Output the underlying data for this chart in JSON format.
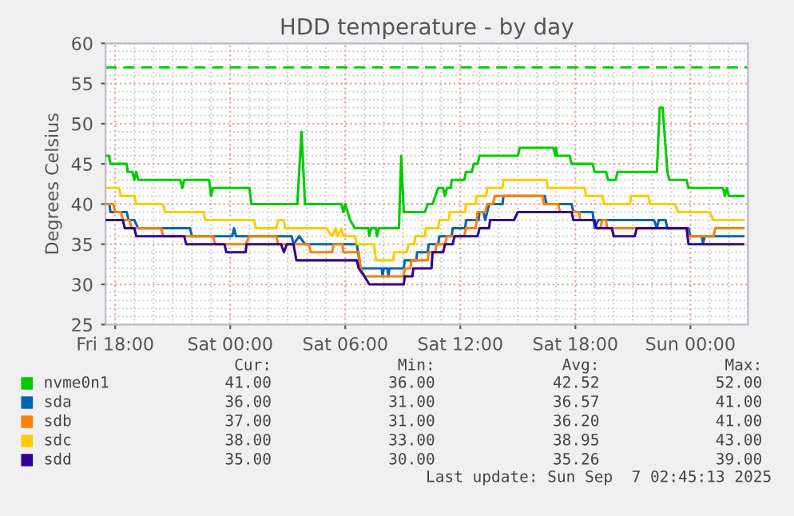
{
  "chart_data": {
    "type": "line",
    "title": "HDD temperature - by day",
    "ylabel": "Degrees Celsius",
    "xlim": [
      "2025-09-05T17:30",
      "2025-09-07T03:00"
    ],
    "ylim": [
      25,
      60
    ],
    "xticks": [
      {
        "value": "2025-09-05T18:00",
        "label": "Fri 18:00"
      },
      {
        "value": "2025-09-06T00:00",
        "label": "Sat 00:00"
      },
      {
        "value": "2025-09-06T06:00",
        "label": "Sat 06:00"
      },
      {
        "value": "2025-09-06T12:00",
        "label": "Sat 12:00"
      },
      {
        "value": "2025-09-06T18:00",
        "label": "Sat 18:00"
      },
      {
        "value": "2025-09-07T00:00",
        "label": "Sun 00:00"
      }
    ],
    "yticks": [
      25,
      30,
      35,
      40,
      45,
      50,
      55,
      60
    ],
    "grid": true,
    "legend": "bottom",
    "line_style": "solid",
    "marker": "none",
    "ref_lines": [
      {
        "axis": "y",
        "value": 57,
        "color": "#00cc00",
        "line_style": "dashed"
      }
    ],
    "series": [
      {
        "name": "nvme0n1",
        "color": "#00cc00",
        "x": [
          "2025-09-05T17:30",
          "2025-09-05T17:41",
          "2025-09-05T17:45",
          "2025-09-05T18:36",
          "2025-09-05T18:39",
          "2025-09-05T18:54",
          "2025-09-05T19:00",
          "2025-09-05T19:06",
          "2025-09-05T19:12",
          "2025-09-05T21:24",
          "2025-09-05T21:30",
          "2025-09-05T21:36",
          "2025-09-05T22:54",
          "2025-09-05T23:00",
          "2025-09-05T23:06",
          "2025-09-06T01:00",
          "2025-09-06T01:06",
          "2025-09-06T03:30",
          "2025-09-06T03:43",
          "2025-09-06T03:54",
          "2025-09-06T05:48",
          "2025-09-06T05:54",
          "2025-09-06T06:00",
          "2025-09-06T06:15",
          "2025-09-06T06:30",
          "2025-09-06T07:12",
          "2025-09-06T07:15",
          "2025-09-06T07:21",
          "2025-09-06T07:36",
          "2025-09-06T07:39",
          "2025-09-06T07:45",
          "2025-09-06T08:48",
          "2025-09-06T08:55",
          "2025-09-06T09:03",
          "2025-09-06T10:09",
          "2025-09-06T10:18",
          "2025-09-06T10:33",
          "2025-09-06T10:42",
          "2025-09-06T10:51",
          "2025-09-06T11:06",
          "2025-09-06T11:12",
          "2025-09-06T11:18",
          "2025-09-06T11:30",
          "2025-09-06T11:33",
          "2025-09-06T12:12",
          "2025-09-06T12:18",
          "2025-09-06T12:36",
          "2025-09-06T12:42",
          "2025-09-06T12:54",
          "2025-09-06T13:00",
          "2025-09-06T15:00",
          "2025-09-06T15:06",
          "2025-09-06T16:51",
          "2025-09-06T16:57",
          "2025-09-06T17:00",
          "2025-09-06T17:03",
          "2025-09-06T17:42",
          "2025-09-06T17:48",
          "2025-09-06T18:54",
          "2025-09-06T19:00",
          "2025-09-06T19:36",
          "2025-09-06T19:42",
          "2025-09-06T20:06",
          "2025-09-06T20:12",
          "2025-09-06T22:15",
          "2025-09-06T22:24",
          "2025-09-06T22:33",
          "2025-09-06T22:48",
          "2025-09-06T22:54",
          "2025-09-06T23:48",
          "2025-09-06T23:54",
          "2025-09-07T01:42",
          "2025-09-07T01:48",
          "2025-09-07T01:54",
          "2025-09-07T02:00",
          "2025-09-07T02:45"
        ],
        "values": [
          46,
          46,
          45,
          45,
          44,
          44,
          43,
          44,
          43,
          43,
          42,
          43,
          43,
          41,
          42,
          42,
          40,
          40,
          49,
          40,
          40,
          39,
          40,
          38,
          37,
          37,
          36,
          37,
          37,
          36,
          37,
          37,
          46,
          39,
          39,
          40,
          40,
          41,
          42,
          42,
          41,
          42,
          42,
          43,
          43,
          44,
          44,
          45,
          45,
          46,
          46,
          47,
          47,
          46,
          47,
          46,
          46,
          45,
          45,
          44,
          44,
          43,
          43,
          44,
          44,
          52,
          52,
          44,
          43,
          43,
          42,
          42,
          41,
          42,
          41,
          41
        ]
      },
      {
        "name": "sda",
        "color": "#0066b3",
        "x": [
          "2025-09-05T17:30",
          "2025-09-05T17:42",
          "2025-09-05T17:45",
          "2025-09-05T18:36",
          "2025-09-05T18:42",
          "2025-09-05T19:00",
          "2025-09-05T19:12",
          "2025-09-05T21:54",
          "2025-09-05T22:00",
          "2025-09-06T00:06",
          "2025-09-06T00:12",
          "2025-09-06T00:18",
          "2025-09-06T03:12",
          "2025-09-06T03:18",
          "2025-09-06T03:36",
          "2025-09-06T03:54",
          "2025-09-06T06:36",
          "2025-09-06T06:48",
          "2025-09-06T07:54",
          "2025-09-06T07:57",
          "2025-09-06T08:00",
          "2025-09-06T08:12",
          "2025-09-06T08:15",
          "2025-09-06T08:18",
          "2025-09-06T09:03",
          "2025-09-06T09:06",
          "2025-09-06T09:42",
          "2025-09-06T09:45",
          "2025-09-06T10:18",
          "2025-09-06T10:21",
          "2025-09-06T10:51",
          "2025-09-06T10:54",
          "2025-09-06T11:33",
          "2025-09-06T11:36",
          "2025-09-06T12:15",
          "2025-09-06T12:18",
          "2025-09-06T12:57",
          "2025-09-06T13:00",
          "2025-09-06T13:12",
          "2025-09-06T13:18",
          "2025-09-06T13:24",
          "2025-09-06T13:30",
          "2025-09-06T14:12",
          "2025-09-06T14:15",
          "2025-09-06T16:24",
          "2025-09-06T16:30",
          "2025-09-06T17:48",
          "2025-09-06T17:54",
          "2025-09-06T18:54",
          "2025-09-06T19:00",
          "2025-09-06T19:12",
          "2025-09-06T22:06",
          "2025-09-06T22:15",
          "2025-09-06T22:21",
          "2025-09-06T22:42",
          "2025-09-06T22:48",
          "2025-09-06T23:54",
          "2025-09-07T00:00",
          "2025-09-07T00:36",
          "2025-09-07T00:39",
          "2025-09-07T00:45",
          "2025-09-07T02:45"
        ],
        "values": [
          40,
          40,
          39,
          39,
          38,
          38,
          37,
          37,
          36,
          36,
          37,
          36,
          36,
          35,
          36,
          35,
          35,
          32,
          32,
          31,
          32,
          32,
          31,
          32,
          32,
          33,
          33,
          34,
          34,
          35,
          35,
          36,
          36,
          37,
          37,
          38,
          38,
          39,
          39,
          38,
          39,
          40,
          40,
          41,
          41,
          40,
          40,
          39,
          39,
          37,
          38,
          38,
          37,
          38,
          38,
          37,
          37,
          36,
          36,
          35,
          36,
          36
        ]
      },
      {
        "name": "sdb",
        "color": "#ff8000",
        "x": [
          "2025-09-05T17:30",
          "2025-09-05T17:54",
          "2025-09-05T18:00",
          "2025-09-05T18:18",
          "2025-09-05T18:24",
          "2025-09-05T18:45",
          "2025-09-05T18:51",
          "2025-09-05T20:24",
          "2025-09-05T20:30",
          "2025-09-05T23:06",
          "2025-09-05T23:12",
          "2025-09-06T00:48",
          "2025-09-06T01:00",
          "2025-09-06T02:24",
          "2025-09-06T02:30",
          "2025-09-06T04:06",
          "2025-09-06T04:12",
          "2025-09-06T05:18",
          "2025-09-06T05:24",
          "2025-09-06T05:51",
          "2025-09-06T05:54",
          "2025-09-06T06:42",
          "2025-09-06T06:48",
          "2025-09-06T07:00",
          "2025-09-06T09:03",
          "2025-09-06T09:06",
          "2025-09-06T09:24",
          "2025-09-06T09:27",
          "2025-09-06T10:18",
          "2025-09-06T10:21",
          "2025-09-06T10:42",
          "2025-09-06T10:45",
          "2025-09-06T11:12",
          "2025-09-06T11:18",
          "2025-09-06T12:12",
          "2025-09-06T12:18",
          "2025-09-06T12:48",
          "2025-09-06T12:54",
          "2025-09-06T13:18",
          "2025-09-06T13:24",
          "2025-09-06T13:42",
          "2025-09-06T13:48",
          "2025-09-06T16:18",
          "2025-09-06T16:21",
          "2025-09-06T17:06",
          "2025-09-06T17:12",
          "2025-09-06T18:12",
          "2025-09-06T18:15",
          "2025-09-06T19:00",
          "2025-09-06T19:06",
          "2025-09-06T19:18",
          "2025-09-06T19:24",
          "2025-09-06T19:36",
          "2025-09-06T19:39",
          "2025-09-06T23:48",
          "2025-09-06T23:54",
          "2025-09-07T01:12",
          "2025-09-07T01:18",
          "2025-09-07T02:45"
        ],
        "values": [
          40,
          40,
          39,
          39,
          38,
          38,
          37,
          37,
          36,
          36,
          35,
          35,
          36,
          36,
          35,
          35,
          34,
          34,
          35,
          35,
          34,
          34,
          32,
          31,
          31,
          32,
          32,
          33,
          33,
          34,
          34,
          35,
          35,
          36,
          36,
          37,
          37,
          39,
          39,
          40,
          40,
          41,
          41,
          40,
          40,
          39,
          39,
          38,
          38,
          37,
          37,
          38,
          38,
          37,
          37,
          36,
          36,
          37,
          37
        ]
      },
      {
        "name": "sdc",
        "color": "#ffcc00",
        "x": [
          "2025-09-05T17:30",
          "2025-09-05T18:12",
          "2025-09-05T18:18",
          "2025-09-05T19:00",
          "2025-09-05T19:06",
          "2025-09-05T20:30",
          "2025-09-05T20:36",
          "2025-09-05T22:36",
          "2025-09-05T22:42",
          "2025-09-06T01:15",
          "2025-09-06T01:21",
          "2025-09-06T02:24",
          "2025-09-06T02:30",
          "2025-09-06T02:48",
          "2025-09-06T02:51",
          "2025-09-06T05:00",
          "2025-09-06T05:18",
          "2025-09-06T05:30",
          "2025-09-06T05:36",
          "2025-09-06T05:48",
          "2025-09-06T05:54",
          "2025-09-06T06:30",
          "2025-09-06T06:36",
          "2025-09-06T07:30",
          "2025-09-06T07:36",
          "2025-09-06T08:30",
          "2025-09-06T08:33",
          "2025-09-06T09:12",
          "2025-09-06T09:18",
          "2025-09-06T09:36",
          "2025-09-06T09:39",
          "2025-09-06T10:09",
          "2025-09-06T10:12",
          "2025-09-06T10:51",
          "2025-09-06T10:54",
          "2025-09-06T11:24",
          "2025-09-06T11:27",
          "2025-09-06T12:15",
          "2025-09-06T12:18",
          "2025-09-06T12:48",
          "2025-09-06T12:51",
          "2025-09-06T13:21",
          "2025-09-06T13:24",
          "2025-09-06T14:12",
          "2025-09-06T14:15",
          "2025-09-06T16:30",
          "2025-09-06T16:33",
          "2025-09-06T18:30",
          "2025-09-06T18:33",
          "2025-09-06T19:24",
          "2025-09-06T19:30",
          "2025-09-06T20:51",
          "2025-09-06T20:54",
          "2025-09-06T21:48",
          "2025-09-06T21:54",
          "2025-09-06T23:12",
          "2025-09-06T23:21",
          "2025-09-07T01:00",
          "2025-09-07T01:12",
          "2025-09-07T02:45"
        ],
        "values": [
          42,
          42,
          41,
          41,
          40,
          40,
          39,
          39,
          38,
          38,
          37,
          37,
          38,
          38,
          37,
          37,
          36,
          37,
          36,
          37,
          36,
          36,
          35,
          35,
          33,
          33,
          34,
          34,
          35,
          35,
          36,
          36,
          37,
          37,
          38,
          38,
          39,
          39,
          40,
          40,
          41,
          41,
          42,
          42,
          43,
          43,
          42,
          42,
          41,
          41,
          40,
          40,
          41,
          41,
          40,
          40,
          39,
          39,
          38,
          38
        ]
      },
      {
        "name": "sdd",
        "color": "#330099",
        "x": [
          "2025-09-05T17:30",
          "2025-09-05T18:24",
          "2025-09-05T18:30",
          "2025-09-05T19:00",
          "2025-09-05T19:06",
          "2025-09-05T21:36",
          "2025-09-05T21:42",
          "2025-09-05T23:42",
          "2025-09-05T23:48",
          "2025-09-06T00:48",
          "2025-09-06T00:51",
          "2025-09-06T02:39",
          "2025-09-06T02:48",
          "2025-09-06T02:57",
          "2025-09-06T03:18",
          "2025-09-06T03:27",
          "2025-09-06T06:36",
          "2025-09-06T06:42",
          "2025-09-06T07:00",
          "2025-09-06T07:15",
          "2025-09-06T09:03",
          "2025-09-06T09:06",
          "2025-09-06T09:30",
          "2025-09-06T09:33",
          "2025-09-06T10:30",
          "2025-09-06T10:33",
          "2025-09-06T11:06",
          "2025-09-06T11:12",
          "2025-09-06T11:36",
          "2025-09-06T11:42",
          "2025-09-06T12:54",
          "2025-09-06T13:00",
          "2025-09-06T13:30",
          "2025-09-06T13:33",
          "2025-09-06T14:48",
          "2025-09-06T15:00",
          "2025-09-06T17:48",
          "2025-09-06T17:54",
          "2025-09-06T19:00",
          "2025-09-06T19:06",
          "2025-09-06T19:54",
          "2025-09-06T20:00",
          "2025-09-06T21:06",
          "2025-09-06T21:12",
          "2025-09-06T23:48",
          "2025-09-06T23:54",
          "2025-09-07T02:45"
        ],
        "values": [
          38,
          38,
          37,
          37,
          36,
          36,
          35,
          35,
          34,
          34,
          35,
          35,
          34,
          35,
          35,
          33,
          33,
          32,
          31,
          30,
          30,
          31,
          31,
          32,
          32,
          34,
          34,
          35,
          35,
          36,
          36,
          37,
          37,
          38,
          38,
          39,
          39,
          38,
          38,
          37,
          37,
          36,
          36,
          37,
          37,
          35,
          35
        ]
      }
    ],
    "annotations": [
      "Cur:",
      "Min:",
      "Avg:",
      "Max:",
      "41.00",
      "36.00",
      "42.52",
      "52.00",
      "36.00",
      "31.00",
      "36.57",
      "41.00",
      "37.00",
      "31.00",
      "36.20",
      "41.00",
      "38.00",
      "33.00",
      "38.95",
      "43.00",
      "35.00",
      "30.00",
      "35.26",
      "39.00",
      "Last update: Sun Sep  7 02:45:13 2025"
    ]
  }
}
